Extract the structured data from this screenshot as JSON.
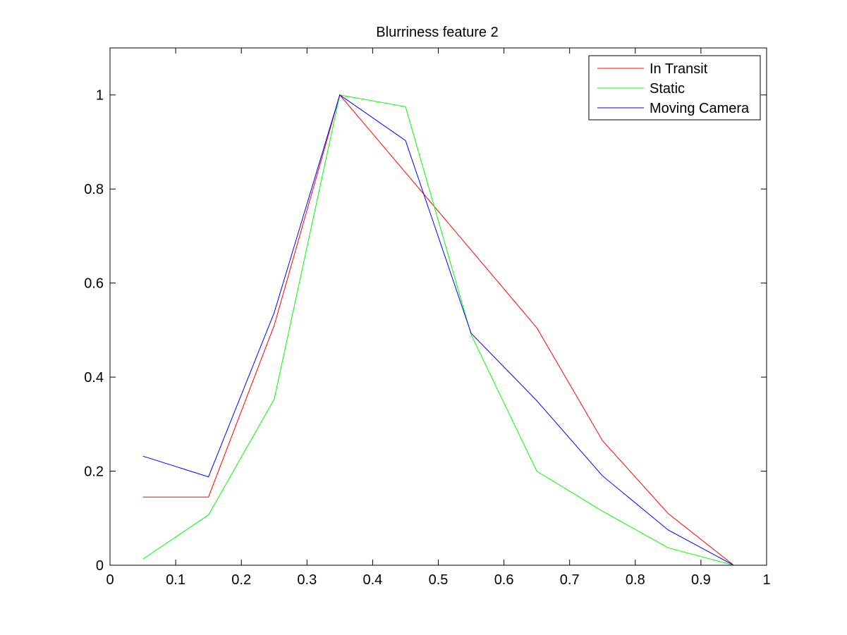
{
  "chart_data": {
    "type": "line",
    "title": "Blurriness feature 2",
    "xlabel": "",
    "ylabel": "",
    "xlim": [
      0,
      1
    ],
    "ylim": [
      0,
      1.1
    ],
    "xticks": [
      0,
      0.1,
      0.2,
      0.3,
      0.4,
      0.5,
      0.6,
      0.7,
      0.8,
      0.9,
      1
    ],
    "xtick_labels": [
      "0",
      "0.1",
      "0.2",
      "0.3",
      "0.4",
      "0.5",
      "0.6",
      "0.7",
      "0.8",
      "0.9",
      "1"
    ],
    "yticks": [
      0,
      0.2,
      0.4,
      0.6,
      0.8,
      1
    ],
    "ytick_labels": [
      "0",
      "0.2",
      "0.4",
      "0.6",
      "0.8",
      "1"
    ],
    "grid": false,
    "legend_position": "top-right",
    "x": [
      0.05,
      0.15,
      0.25,
      0.35,
      0.45,
      0.55,
      0.65,
      0.75,
      0.85,
      0.95
    ],
    "series": [
      {
        "name": "In Transit",
        "color": "#ff0000",
        "values": [
          0.145,
          0.145,
          0.51,
          1.0,
          0.835,
          0.67,
          0.505,
          0.265,
          0.11,
          0.0
        ]
      },
      {
        "name": "Static",
        "color": "#00ff00",
        "values": [
          0.013,
          0.107,
          0.353,
          1.0,
          0.975,
          0.49,
          0.2,
          0.115,
          0.037,
          0.0
        ]
      },
      {
        "name": "Moving Camera",
        "color": "#0000ff",
        "values": [
          0.232,
          0.188,
          0.537,
          1.0,
          0.903,
          0.493,
          0.35,
          0.19,
          0.075,
          0.0
        ]
      }
    ]
  }
}
